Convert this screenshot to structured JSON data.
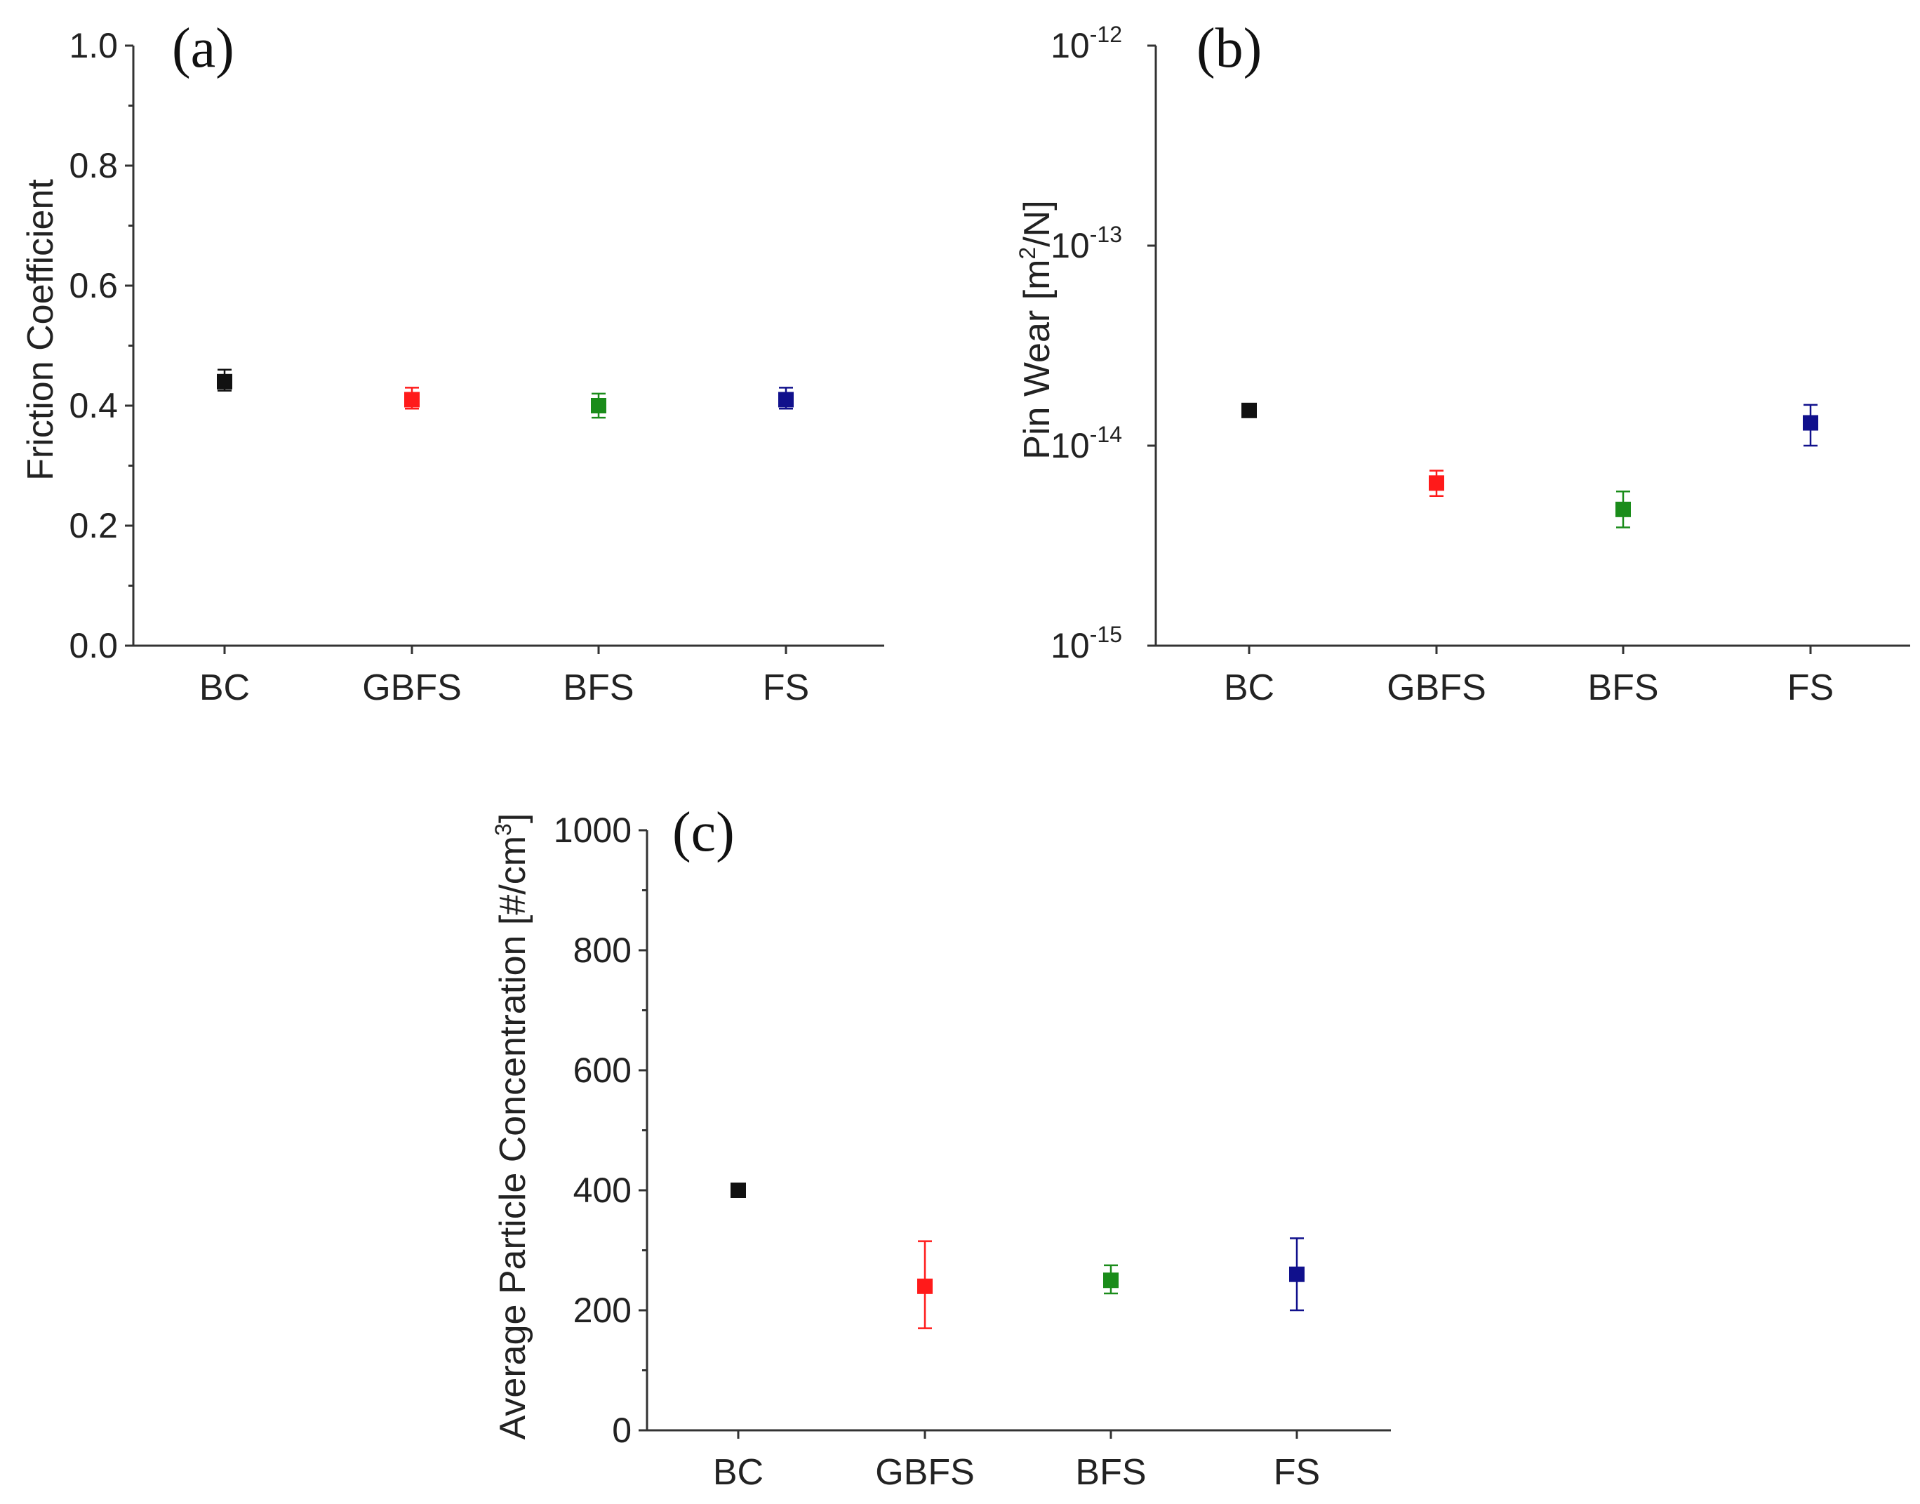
{
  "colors": {
    "BC": "#111111",
    "GBFS": "#ff1a1a",
    "BFS": "#1a8c1a",
    "FS": "#10108c"
  },
  "chart_data": [
    {
      "type": "scatter",
      "panel_label": "(a)",
      "title": "",
      "xlabel": "",
      "ylabel": "Friction Coefficient",
      "scale": "linear",
      "ylim": [
        0.0,
        1.0
      ],
      "yticks": [
        0.0,
        0.2,
        0.4,
        0.6,
        0.8,
        1.0
      ],
      "ytick_labels": [
        "0.0",
        "0.2",
        "0.4",
        "0.6",
        "0.8",
        "1.0"
      ],
      "categories": [
        "BC",
        "GBFS",
        "BFS",
        "FS"
      ],
      "values": [
        0.44,
        0.41,
        0.4,
        0.41
      ],
      "err_low": [
        0.425,
        0.395,
        0.38,
        0.395
      ],
      "err_high": [
        0.46,
        0.43,
        0.42,
        0.43
      ]
    },
    {
      "type": "scatter",
      "panel_label": "(b)",
      "title": "",
      "xlabel": "",
      "ylabel_text": "Pin Wear [m",
      "ylabel_sup": "2",
      "ylabel_tail": "/N]",
      "scale": "log",
      "ylim": [
        1e-15,
        1e-12
      ],
      "yticks": [
        1e-15,
        1e-14,
        1e-13,
        1e-12
      ],
      "ytick_bases": [
        "10",
        "10",
        "10",
        "10"
      ],
      "ytick_exps": [
        "-15",
        "-14",
        "-13",
        "-12"
      ],
      "categories": [
        "BC",
        "GBFS",
        "BFS",
        "FS"
      ],
      "values": [
        1.5e-14,
        6.5e-15,
        4.8e-15,
        1.3e-14
      ],
      "err_low": [
        1.45e-14,
        5.6e-15,
        3.9e-15,
        1e-14
      ],
      "err_high": [
        1.55e-14,
        7.5e-15,
        5.9e-15,
        1.6e-14
      ]
    },
    {
      "type": "scatter",
      "panel_label": "(c)",
      "title": "",
      "xlabel": "",
      "ylabel_text": "Average Particle Concentration [#/cm",
      "ylabel_sup": "3",
      "ylabel_tail": "]",
      "scale": "linear",
      "ylim": [
        0,
        1000
      ],
      "yticks": [
        0,
        200,
        400,
        600,
        800,
        1000
      ],
      "ytick_labels": [
        "0",
        "200",
        "400",
        "600",
        "800",
        "1000"
      ],
      "categories": [
        "BC",
        "GBFS",
        "BFS",
        "FS"
      ],
      "values": [
        400,
        240,
        250,
        260
      ],
      "err_low": [
        396,
        170,
        228,
        200
      ],
      "err_high": [
        404,
        315,
        275,
        320
      ]
    }
  ]
}
